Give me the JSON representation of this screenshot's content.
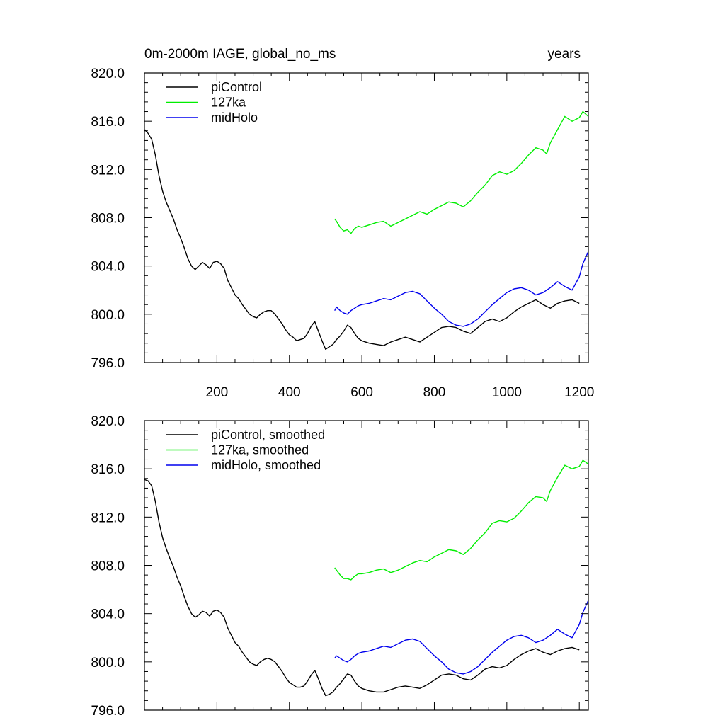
{
  "figure": {
    "title_left": "0m-2000m IAGE, global_no_ms",
    "title_right": "years"
  },
  "colors": {
    "piControl": "#000000",
    "127ka": "#00ee00",
    "midHolo": "#0000ee"
  },
  "chart_data": [
    {
      "type": "line",
      "title": "0m-2000m IAGE, global_no_ms",
      "xlabel": "years",
      "ylabel": "",
      "xlim": [
        0,
        1225
      ],
      "ylim": [
        796,
        820
      ],
      "yticks": [
        796,
        800,
        804,
        808,
        812,
        816,
        820
      ],
      "ytick_labels": [
        "796.0",
        "800.0",
        "804.0",
        "808.0",
        "812.0",
        "816.0",
        "820.0"
      ],
      "xticks": [
        200,
        400,
        600,
        800,
        1000,
        1200
      ],
      "xtick_labels": [
        "200",
        "400",
        "600",
        "800",
        "1000",
        "1200"
      ],
      "legend_placement": "top-left",
      "series": [
        {
          "name": "piControl",
          "color_key": "piControl",
          "x": [
            1,
            10,
            20,
            30,
            40,
            50,
            60,
            70,
            80,
            90,
            100,
            110,
            120,
            130,
            140,
            150,
            160,
            170,
            180,
            190,
            200,
            210,
            220,
            230,
            240,
            250,
            260,
            270,
            280,
            290,
            300,
            310,
            320,
            330,
            340,
            350,
            360,
            370,
            380,
            390,
            400,
            410,
            420,
            430,
            440,
            450,
            460,
            470,
            480,
            490,
            500,
            510,
            520,
            530,
            540,
            550,
            560,
            570,
            580,
            590,
            600,
            620,
            640,
            660,
            680,
            700,
            720,
            740,
            760,
            780,
            800,
            820,
            840,
            860,
            880,
            900,
            920,
            940,
            960,
            980,
            1000,
            1020,
            1040,
            1060,
            1080,
            1100,
            1120,
            1140,
            1160,
            1180,
            1200
          ],
          "y": [
            815.3,
            815.0,
            814.5,
            813.2,
            811.5,
            810.2,
            809.3,
            808.6,
            807.9,
            807.0,
            806.3,
            805.5,
            804.6,
            804.0,
            803.7,
            804.0,
            804.3,
            804.1,
            803.8,
            804.3,
            804.4,
            804.2,
            803.8,
            802.8,
            802.2,
            801.6,
            801.3,
            800.8,
            800.4,
            800.0,
            799.8,
            799.7,
            800.0,
            800.2,
            800.3,
            800.3,
            800.0,
            799.6,
            799.2,
            798.7,
            798.3,
            798.1,
            797.8,
            797.9,
            798.0,
            798.4,
            799.0,
            799.4,
            798.6,
            797.8,
            797.1,
            797.3,
            797.5,
            797.9,
            798.2,
            798.6,
            799.1,
            798.9,
            798.4,
            798.0,
            797.8,
            797.6,
            797.5,
            797.4,
            797.7,
            797.9,
            798.1,
            797.9,
            797.7,
            798.1,
            798.5,
            798.9,
            799.0,
            798.9,
            798.6,
            798.4,
            798.9,
            799.4,
            799.6,
            799.4,
            799.7,
            800.2,
            800.6,
            800.9,
            801.2,
            800.8,
            800.5,
            800.9,
            801.1,
            801.2,
            800.9
          ]
        },
        {
          "name": "127ka",
          "color_key": "127ka",
          "x": [
            525,
            530,
            540,
            550,
            560,
            570,
            580,
            590,
            600,
            620,
            640,
            660,
            680,
            700,
            720,
            740,
            760,
            780,
            800,
            820,
            840,
            860,
            880,
            900,
            920,
            940,
            960,
            980,
            1000,
            1020,
            1040,
            1060,
            1080,
            1100,
            1110,
            1120,
            1140,
            1160,
            1180,
            1200,
            1210,
            1225
          ],
          "y": [
            807.9,
            807.7,
            807.2,
            806.9,
            807.0,
            806.7,
            807.1,
            807.3,
            807.2,
            807.4,
            807.6,
            807.7,
            807.3,
            807.6,
            807.9,
            808.2,
            808.5,
            808.3,
            808.7,
            809.0,
            809.3,
            809.2,
            808.9,
            809.4,
            810.1,
            810.7,
            811.5,
            811.8,
            811.6,
            811.9,
            812.5,
            813.2,
            813.8,
            813.6,
            813.3,
            814.2,
            815.3,
            816.4,
            816.0,
            816.3,
            816.8,
            816.4
          ]
        },
        {
          "name": "midHolo",
          "color_key": "midHolo",
          "x": [
            525,
            530,
            540,
            550,
            560,
            570,
            580,
            590,
            600,
            620,
            640,
            660,
            680,
            700,
            720,
            740,
            760,
            780,
            800,
            820,
            840,
            860,
            880,
            900,
            920,
            940,
            960,
            980,
            1000,
            1020,
            1040,
            1060,
            1080,
            1100,
            1120,
            1140,
            1160,
            1180,
            1200,
            1210,
            1225
          ],
          "y": [
            800.3,
            800.6,
            800.3,
            800.1,
            800.0,
            800.3,
            800.5,
            800.7,
            800.8,
            800.9,
            801.1,
            801.3,
            801.2,
            801.5,
            801.8,
            801.9,
            801.7,
            801.1,
            800.5,
            800.0,
            799.4,
            799.1,
            799.0,
            799.2,
            799.6,
            800.2,
            800.8,
            801.3,
            801.8,
            802.1,
            802.2,
            802.0,
            801.6,
            801.8,
            802.2,
            802.7,
            802.3,
            802.0,
            803.1,
            804.2,
            805.2
          ]
        }
      ]
    },
    {
      "type": "line",
      "title": "",
      "xlabel": "",
      "ylabel": "",
      "xlim": [
        0,
        1225
      ],
      "ylim": [
        796,
        820
      ],
      "yticks": [
        796,
        800,
        804,
        808,
        812,
        816,
        820
      ],
      "ytick_labels": [
        "796.0",
        "800.0",
        "804.0",
        "808.0",
        "812.0",
        "816.0",
        "820.0"
      ],
      "xticks": [
        200,
        400,
        600,
        800,
        1000,
        1200
      ],
      "xtick_labels": [],
      "legend_placement": "top-left",
      "series": [
        {
          "name": "piControl, smoothed",
          "color_key": "piControl",
          "x": [
            1,
            10,
            20,
            30,
            40,
            50,
            60,
            70,
            80,
            90,
            100,
            110,
            120,
            130,
            140,
            150,
            160,
            170,
            180,
            190,
            200,
            210,
            220,
            230,
            240,
            250,
            260,
            270,
            280,
            290,
            300,
            310,
            320,
            330,
            340,
            350,
            360,
            370,
            380,
            390,
            400,
            410,
            420,
            430,
            440,
            450,
            460,
            470,
            480,
            490,
            500,
            510,
            520,
            530,
            540,
            550,
            560,
            570,
            580,
            590,
            600,
            620,
            640,
            660,
            680,
            700,
            720,
            740,
            760,
            780,
            800,
            820,
            840,
            860,
            880,
            900,
            920,
            940,
            960,
            980,
            1000,
            1020,
            1040,
            1060,
            1080,
            1100,
            1120,
            1140,
            1160,
            1180,
            1200
          ],
          "y": [
            815.1,
            815.0,
            814.6,
            813.3,
            811.6,
            810.3,
            809.4,
            808.6,
            807.9,
            807.0,
            806.3,
            805.4,
            804.6,
            804.0,
            803.7,
            803.9,
            804.2,
            804.1,
            803.8,
            804.2,
            804.3,
            804.1,
            803.7,
            802.8,
            802.2,
            801.6,
            801.3,
            800.8,
            800.4,
            800.0,
            799.8,
            799.7,
            800.0,
            800.2,
            800.3,
            800.2,
            800.0,
            799.6,
            799.2,
            798.7,
            798.3,
            798.1,
            797.9,
            797.9,
            798.0,
            798.4,
            798.9,
            799.3,
            798.6,
            797.8,
            797.2,
            797.3,
            797.5,
            797.9,
            798.2,
            798.6,
            799.0,
            798.9,
            798.4,
            798.0,
            797.8,
            797.6,
            797.5,
            797.5,
            797.7,
            797.9,
            798.0,
            797.9,
            797.8,
            798.1,
            798.5,
            798.9,
            799.0,
            798.9,
            798.6,
            798.5,
            798.9,
            799.4,
            799.6,
            799.5,
            799.7,
            800.2,
            800.6,
            800.9,
            801.1,
            800.8,
            800.6,
            800.9,
            801.1,
            801.2,
            801.0
          ]
        },
        {
          "name": "127ka, smoothed",
          "color_key": "127ka",
          "x": [
            525,
            530,
            540,
            550,
            560,
            570,
            580,
            590,
            600,
            620,
            640,
            660,
            680,
            700,
            720,
            740,
            760,
            780,
            800,
            820,
            840,
            860,
            880,
            900,
            920,
            940,
            960,
            980,
            1000,
            1020,
            1040,
            1060,
            1080,
            1100,
            1110,
            1120,
            1140,
            1160,
            1180,
            1200,
            1210,
            1225
          ],
          "y": [
            807.8,
            807.6,
            807.2,
            806.9,
            806.9,
            806.8,
            807.1,
            807.3,
            807.3,
            807.4,
            807.6,
            807.7,
            807.4,
            807.6,
            807.9,
            808.2,
            808.4,
            808.3,
            808.7,
            809.0,
            809.3,
            809.2,
            808.9,
            809.4,
            810.1,
            810.7,
            811.5,
            811.7,
            811.6,
            811.9,
            812.5,
            813.2,
            813.7,
            813.6,
            813.3,
            814.2,
            815.3,
            816.3,
            816.0,
            816.2,
            816.7,
            816.4
          ]
        },
        {
          "name": "midHolo, smoothed",
          "color_key": "midHolo",
          "x": [
            525,
            530,
            540,
            550,
            560,
            570,
            580,
            590,
            600,
            620,
            640,
            660,
            680,
            700,
            720,
            740,
            760,
            780,
            800,
            820,
            840,
            860,
            880,
            900,
            920,
            940,
            960,
            980,
            1000,
            1020,
            1040,
            1060,
            1080,
            1100,
            1120,
            1140,
            1160,
            1180,
            1200,
            1210,
            1225
          ],
          "y": [
            800.3,
            800.5,
            800.3,
            800.1,
            800.0,
            800.2,
            800.5,
            800.7,
            800.8,
            800.9,
            801.1,
            801.3,
            801.2,
            801.5,
            801.8,
            801.9,
            801.7,
            801.1,
            800.5,
            800.0,
            799.4,
            799.1,
            799.0,
            799.2,
            799.6,
            800.2,
            800.8,
            801.3,
            801.8,
            802.1,
            802.2,
            802.0,
            801.6,
            801.8,
            802.2,
            802.7,
            802.3,
            802.0,
            803.1,
            804.1,
            805.1
          ]
        }
      ]
    }
  ]
}
